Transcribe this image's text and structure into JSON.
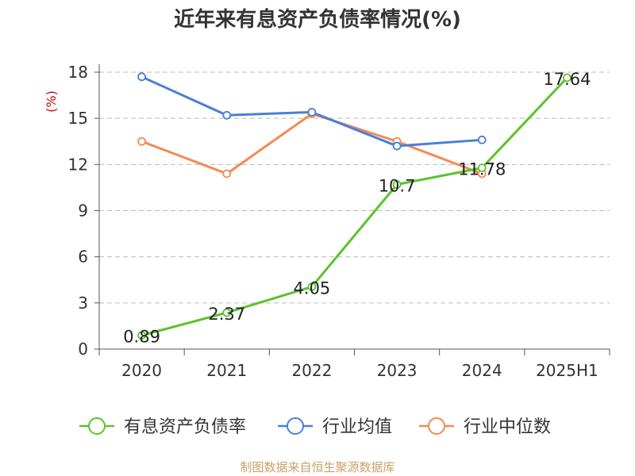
{
  "chart_data": {
    "type": "line",
    "title": "近年来有息资产负债率情况(%)",
    "ylabel": "(%)",
    "categories": [
      "2020",
      "2021",
      "2022",
      "2023",
      "2024",
      "2025H1"
    ],
    "ylim": [
      0,
      18
    ],
    "yticks": [
      0,
      3,
      6,
      9,
      12,
      15,
      18
    ],
    "grid": true,
    "legend_position": "bottom",
    "series": [
      {
        "name": "有息资产负债率",
        "color": "#5cc22e",
        "show_labels": true,
        "values": [
          0.89,
          2.37,
          4.05,
          10.7,
          11.78,
          17.64
        ],
        "labels": [
          "0.89",
          "2.37",
          "4.05",
          "10.7",
          "11.78",
          "17.64"
        ]
      },
      {
        "name": "行业均值",
        "color": "#4a7fd8",
        "show_labels": false,
        "values": [
          17.7,
          15.2,
          15.4,
          13.2,
          13.6,
          null
        ]
      },
      {
        "name": "行业中位数",
        "color": "#f48a52",
        "show_labels": false,
        "values": [
          13.5,
          11.4,
          15.3,
          13.5,
          11.4,
          null
        ]
      }
    ]
  },
  "source_note": "制图数据来自恒生聚源数据库"
}
